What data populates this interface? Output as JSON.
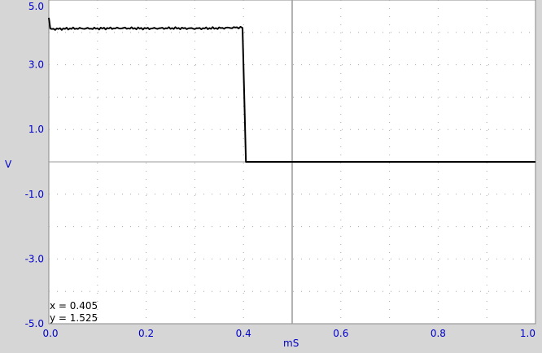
{
  "chart_data": {
    "type": "line",
    "xlabel": "mS",
    "ylabel": "V",
    "xlim": [
      0.0,
      1.0
    ],
    "ylim": [
      -5.0,
      5.0
    ],
    "grid": true,
    "x_ticks": [
      "0.0",
      "0.2",
      "0.4",
      "0.6",
      "0.8",
      "1.0"
    ],
    "y_ticks": [
      "5.0",
      "3.0",
      "1.0",
      "-1.0",
      "-3.0",
      "-5.0"
    ],
    "series": [
      {
        "x": [
          0.0,
          0.003,
          0.05,
          0.1,
          0.15,
          0.2,
          0.25,
          0.3,
          0.35,
          0.39,
          0.398,
          0.405,
          0.5,
          0.6,
          0.7,
          0.8,
          0.9,
          1.0
        ],
        "y": [
          4.45,
          4.1,
          4.12,
          4.12,
          4.13,
          4.12,
          4.13,
          4.12,
          4.13,
          4.15,
          4.15,
          0.0,
          0.0,
          0.0,
          0.0,
          0.0,
          0.0,
          0.0
        ]
      }
    ],
    "cursor": {
      "x": 0.5,
      "x_readout": "x = 0.405",
      "y_readout": "y = 1.525"
    },
    "colors": {
      "trace": "#000000",
      "grid": "#a8a8a8",
      "labels": "#0000cc",
      "plot_bg": "#ffffff",
      "frame_bg": "#d6d6d6"
    }
  }
}
